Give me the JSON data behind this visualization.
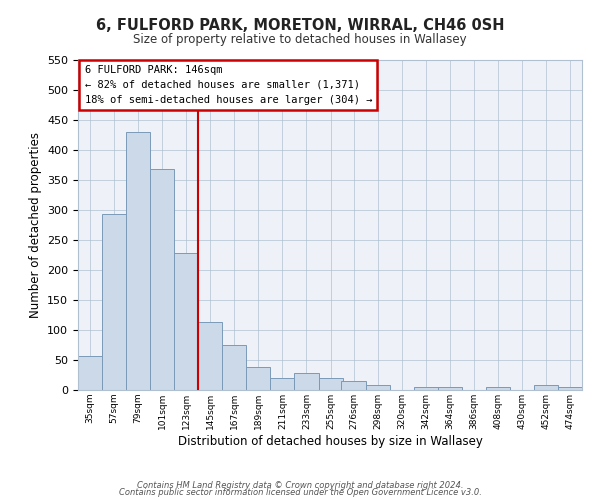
{
  "title": "6, FULFORD PARK, MORETON, WIRRAL, CH46 0SH",
  "subtitle": "Size of property relative to detached houses in Wallasey",
  "xlabel": "Distribution of detached houses by size in Wallasey",
  "ylabel": "Number of detached properties",
  "bar_color": "#ccd9e8",
  "bar_edge_color": "#7a9ab8",
  "background_color": "#eef2f8",
  "bin_labels": [
    "35sqm",
    "57sqm",
    "79sqm",
    "101sqm",
    "123sqm",
    "145sqm",
    "167sqm",
    "189sqm",
    "211sqm",
    "233sqm",
    "255sqm",
    "276sqm",
    "298sqm",
    "320sqm",
    "342sqm",
    "364sqm",
    "386sqm",
    "408sqm",
    "430sqm",
    "452sqm",
    "474sqm"
  ],
  "bin_edges": [
    35,
    57,
    79,
    101,
    123,
    145,
    167,
    189,
    211,
    233,
    255,
    276,
    298,
    320,
    342,
    364,
    386,
    408,
    430,
    452,
    474,
    496
  ],
  "bar_heights": [
    57,
    293,
    430,
    368,
    228,
    113,
    75,
    38,
    20,
    29,
    20,
    15,
    8,
    0,
    5,
    5,
    0,
    5,
    0,
    8,
    5
  ],
  "ylim": [
    0,
    550
  ],
  "yticks": [
    0,
    50,
    100,
    150,
    200,
    250,
    300,
    350,
    400,
    450,
    500,
    550
  ],
  "vline_x": 145,
  "vline_color": "#cc0000",
  "annotation_title": "6 FULFORD PARK: 146sqm",
  "annotation_line1": "← 82% of detached houses are smaller (1,371)",
  "annotation_line2": "18% of semi-detached houses are larger (304) →",
  "annotation_box_color": "#cc0000",
  "footer_line1": "Contains HM Land Registry data © Crown copyright and database right 2024.",
  "footer_line2": "Contains public sector information licensed under the Open Government Licence v3.0."
}
